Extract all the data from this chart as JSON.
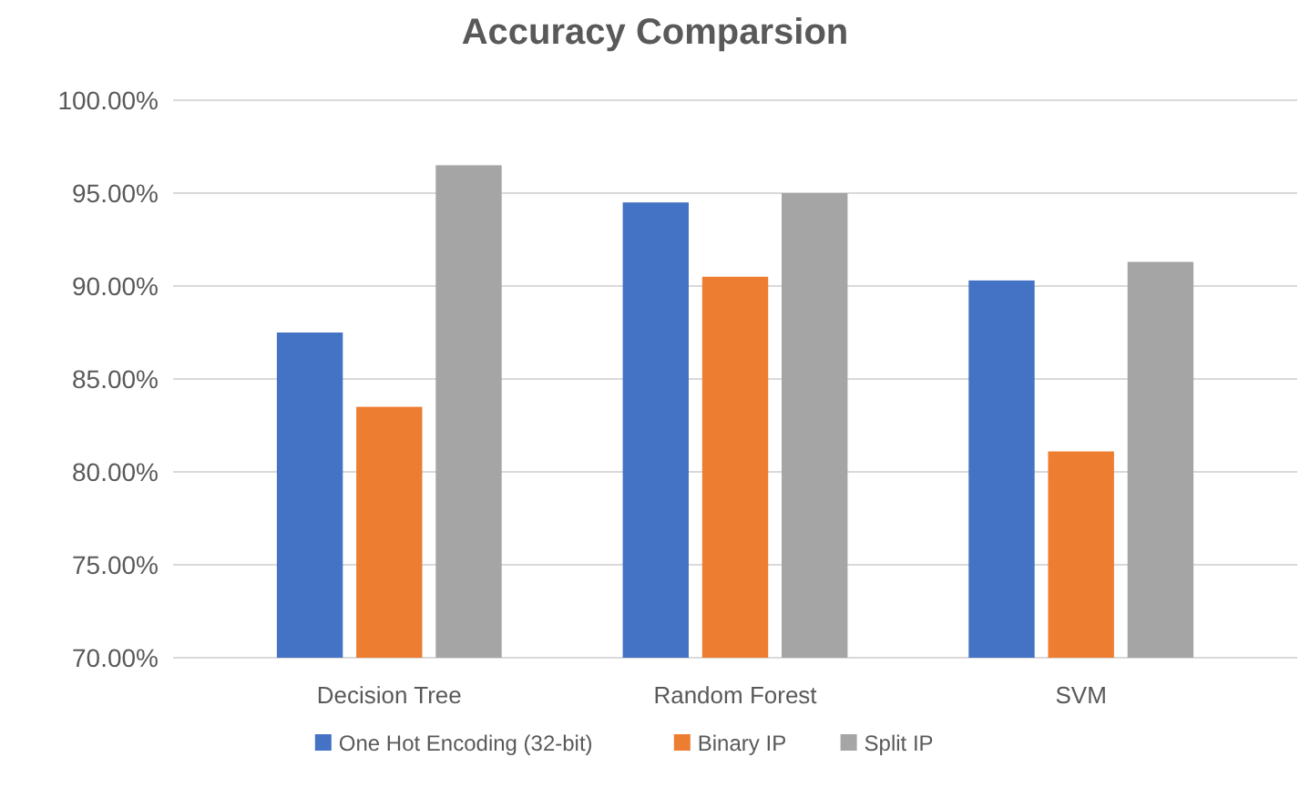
{
  "chart_data": {
    "type": "bar",
    "title": "Accuracy Comparsion",
    "categories": [
      "Decision Tree",
      "Random Forest",
      "SVM"
    ],
    "series": [
      {
        "name": "One Hot Encoding (32-bit)",
        "color": "#4472c4",
        "values": [
          87.5,
          94.5,
          90.3
        ]
      },
      {
        "name": "Binary IP",
        "color": "#ed7d31",
        "values": [
          83.5,
          90.5,
          81.1
        ]
      },
      {
        "name": "Split IP",
        "color": "#a5a5a5",
        "values": [
          96.5,
          95.0,
          91.3
        ]
      }
    ],
    "ylim": [
      70,
      100
    ],
    "yticks": [
      {
        "value": 70,
        "label": "70.00%"
      },
      {
        "value": 75,
        "label": "75.00%"
      },
      {
        "value": 80,
        "label": "80.00%"
      },
      {
        "value": 85,
        "label": "85.00%"
      },
      {
        "value": 90,
        "label": "90.00%"
      },
      {
        "value": 95,
        "label": "95.00%"
      },
      {
        "value": 100,
        "label": "100.00%"
      }
    ],
    "grid": "y",
    "legend": "bottom"
  }
}
